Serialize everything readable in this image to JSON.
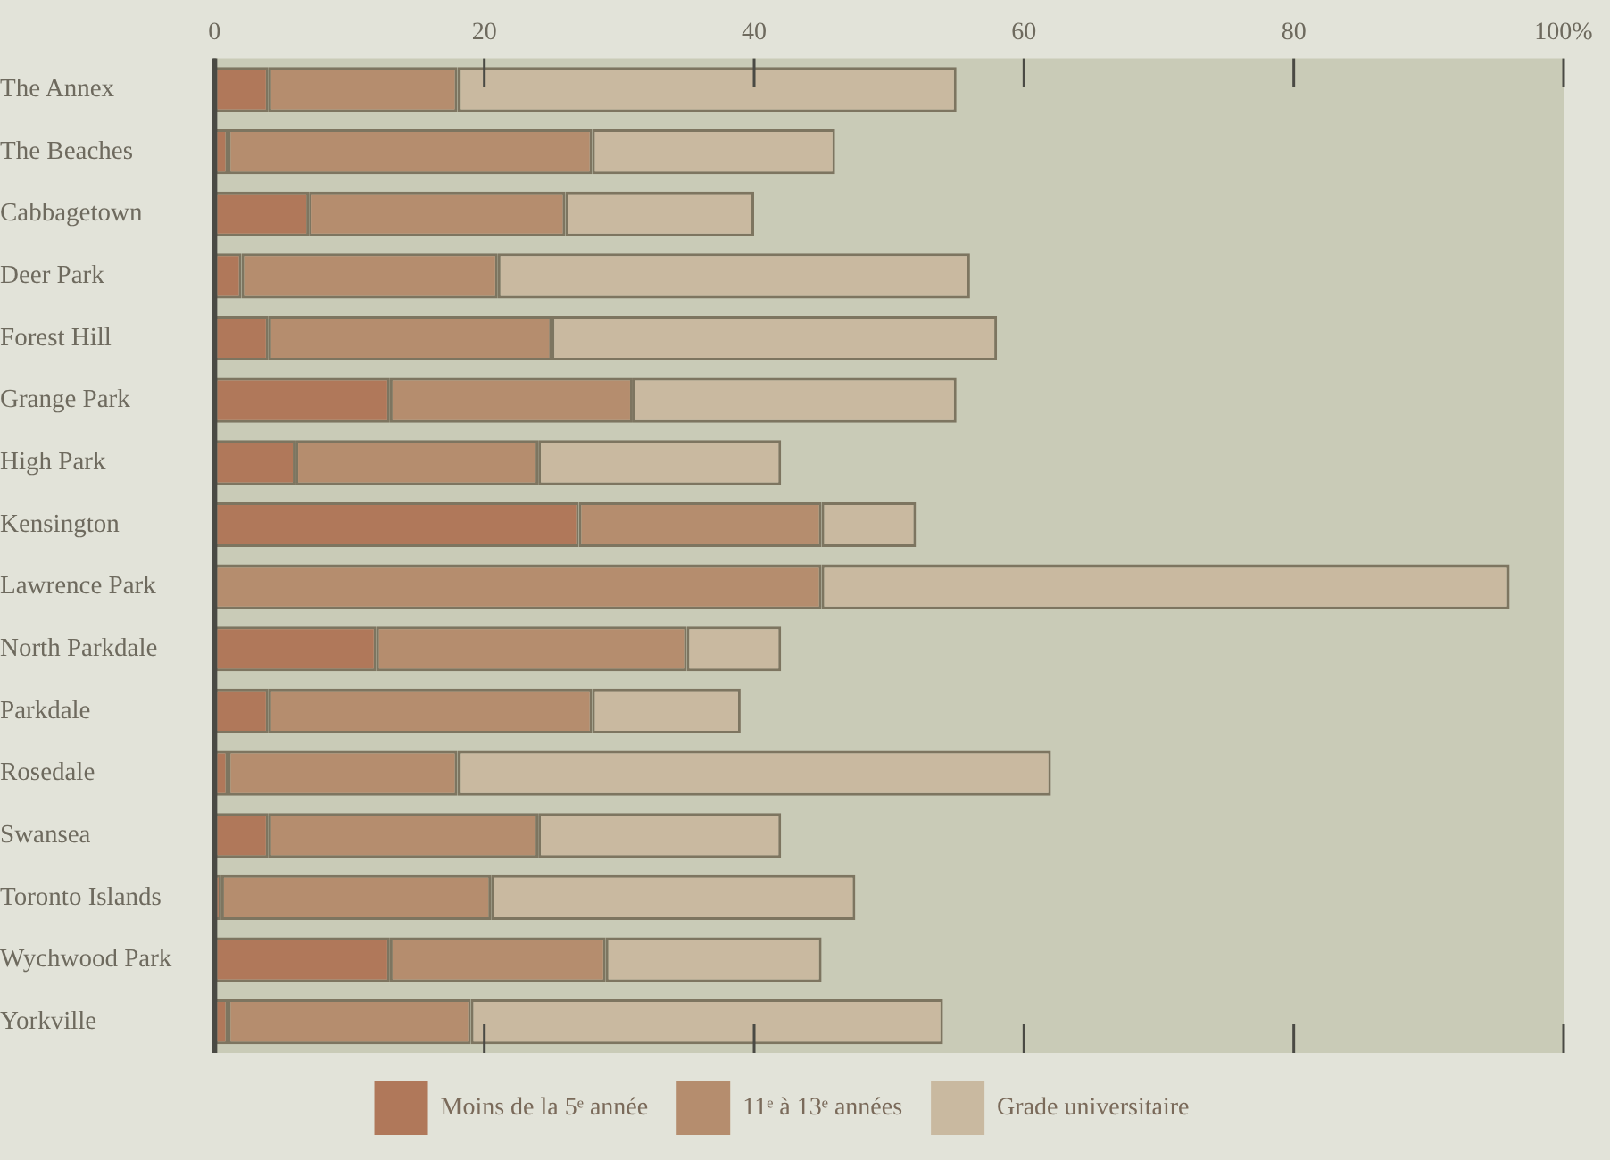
{
  "chart_data": {
    "type": "bar",
    "orientation": "horizontal",
    "stacked": true,
    "categories": [
      "The Annex",
      "The Beaches",
      "Cabbagetown",
      "Deer Park",
      "Forest Hill",
      "Grange Park",
      "High Park",
      "Kensington",
      "Lawrence Park",
      "North Parkdale",
      "Parkdale",
      "Rosedale",
      "Swansea",
      "Toronto Islands",
      "Wychwood Park",
      "Yorkville"
    ],
    "series": [
      {
        "name": "Moins de la 5ᵉ année",
        "color": "#b0785a",
        "values": [
          4,
          1,
          7,
          2,
          4,
          13,
          6,
          27,
          0,
          12,
          4,
          1,
          4,
          0.5,
          13,
          1
        ]
      },
      {
        "name": "11ᵉ à 13ᵉ années",
        "color": "#b58d6e",
        "values": [
          14,
          27,
          19,
          19,
          21,
          18,
          18,
          18,
          45,
          23,
          24,
          17,
          20,
          20,
          16,
          18
        ]
      },
      {
        "name": "Grade universitaire",
        "color": "#c9b9a0",
        "values": [
          37,
          18,
          14,
          35,
          33,
          24,
          18,
          7,
          51,
          7,
          11,
          44,
          18,
          27,
          16,
          35
        ]
      }
    ],
    "xlim": [
      0,
      100
    ],
    "xticks": [
      0,
      20,
      40,
      60,
      {
        "value": 100,
        "label": "100%"
      },
      80
    ],
    "grid": false,
    "legend": "bottom"
  }
}
